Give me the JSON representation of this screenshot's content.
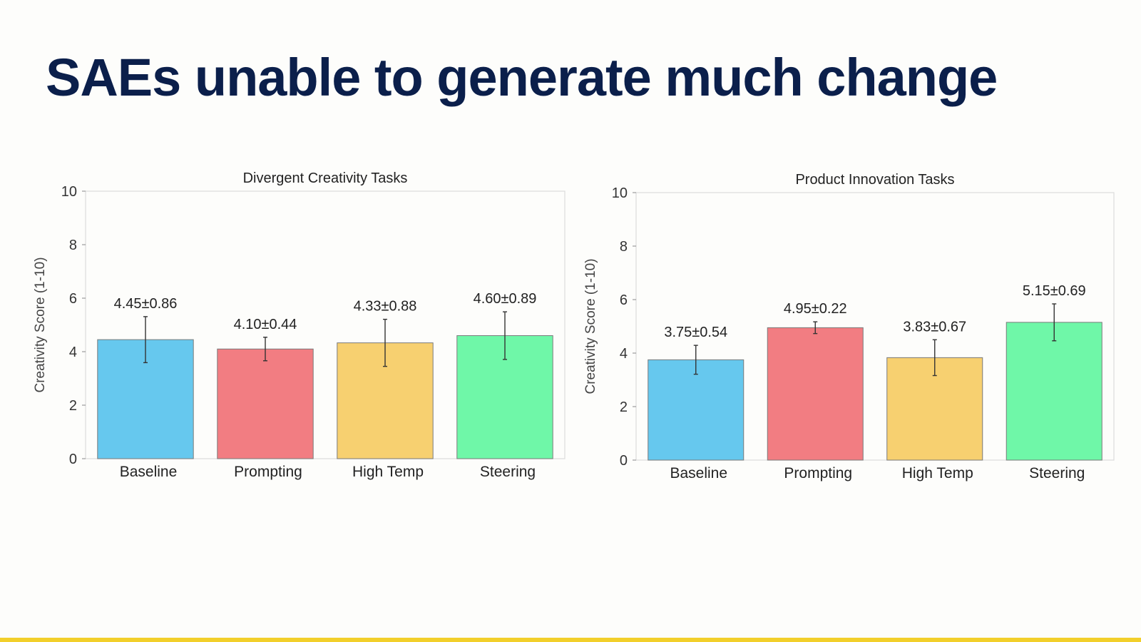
{
  "slide": {
    "title": "SAEs unable to generate much change",
    "accent_color": "#f2cf2a",
    "title_color": "#0b1f4b"
  },
  "chart_data": [
    {
      "type": "bar",
      "title": "Divergent Creativity Tasks",
      "xlabel": "",
      "ylabel": "Creativity Score (1-10)",
      "ylim": [
        0,
        10
      ],
      "yticks": [
        0,
        2,
        4,
        6,
        8,
        10
      ],
      "grid": false,
      "categories": [
        "Baseline",
        "Prompting",
        "High Temp",
        "Steering"
      ],
      "values": [
        4.45,
        4.1,
        4.33,
        4.6
      ],
      "errors": [
        0.86,
        0.44,
        0.88,
        0.89
      ],
      "value_labels": [
        "4.45±0.86",
        "4.10±0.44",
        "4.33±0.88",
        "4.60±0.89"
      ],
      "colors": [
        "#66c8ee",
        "#f27d82",
        "#f7d070",
        "#6ff7a8"
      ]
    },
    {
      "type": "bar",
      "title": "Product Innovation Tasks",
      "xlabel": "",
      "ylabel": "Creativity Score (1-10)",
      "ylim": [
        0,
        10
      ],
      "yticks": [
        0,
        2,
        4,
        6,
        8,
        10
      ],
      "grid": false,
      "categories": [
        "Baseline",
        "Prompting",
        "High Temp",
        "Steering"
      ],
      "values": [
        3.75,
        4.95,
        3.83,
        5.15
      ],
      "errors": [
        0.54,
        0.22,
        0.67,
        0.69
      ],
      "value_labels": [
        "3.75±0.54",
        "4.95±0.22",
        "3.83±0.67",
        "5.15±0.69"
      ],
      "colors": [
        "#66c8ee",
        "#f27d82",
        "#f7d070",
        "#6ff7a8"
      ]
    }
  ]
}
